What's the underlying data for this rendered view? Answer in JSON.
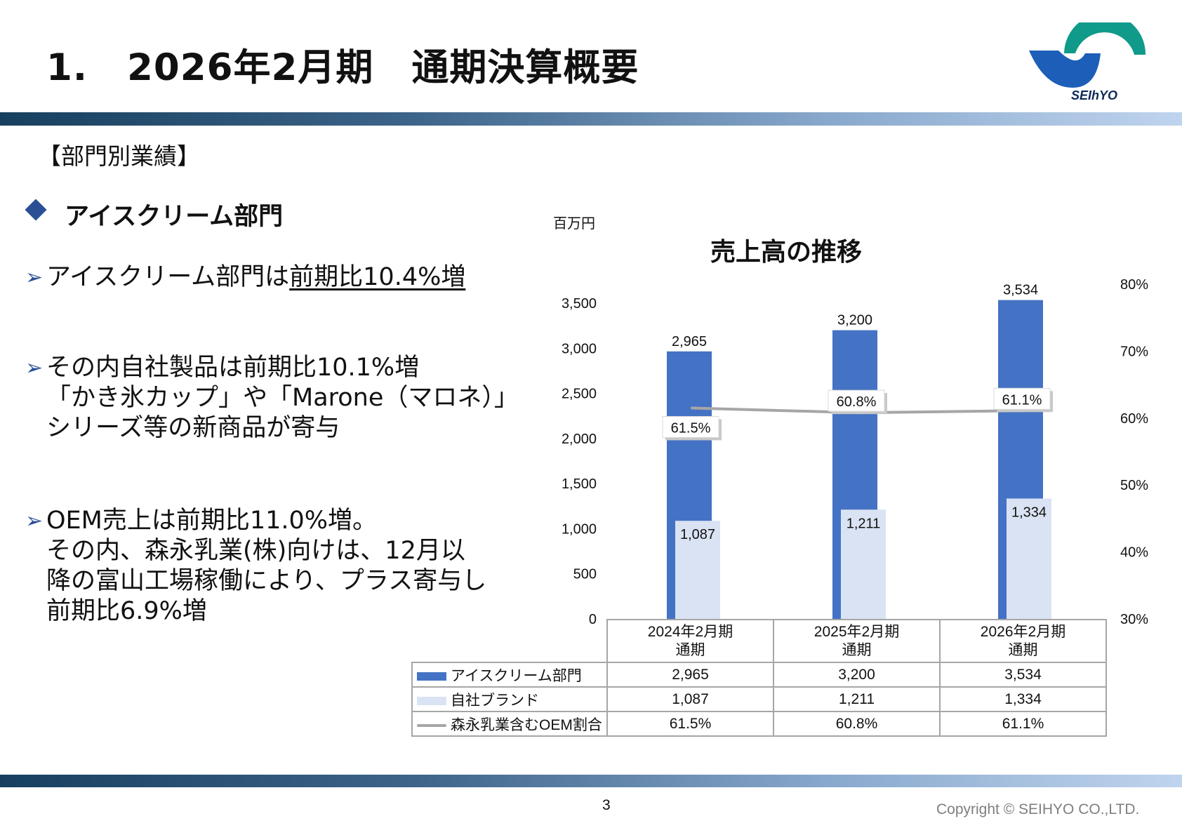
{
  "slide": {
    "number_prefix": "1.",
    "title": "2026年2月期　通期決算概要",
    "section_heading": "【部門別業績】",
    "department_heading": "アイスクリーム部門",
    "page_number": "3",
    "copyright": "Copyright © SEIHYO CO.,LTD.",
    "logo_text": "SEIhYO"
  },
  "bullets": {
    "b1": {
      "prefix": "アイスクリーム部門は",
      "emphasis": "前期比10.4%増"
    },
    "b2": {
      "line1": "その内自社製品は前期比10.1%増",
      "line2": "「かき氷カップ」や「Marone（マロネ）」",
      "line3": "シリーズ等の新商品が寄与"
    },
    "b3": {
      "line1": "OEM売上は前期比11.0%増。",
      "line2": "その内、森永乳業(株)向けは、12月以",
      "line3": "降の富山工場稼働により、プラス寄与し",
      "line4": "前期比6.9%増"
    }
  },
  "colors": {
    "bar_primary": "#4472c4",
    "bar_secondary": "#dae3f3",
    "line": "#a6a6a6",
    "accent": "#2a4f95",
    "logo_blue": "#1d5fb8",
    "logo_teal": "#109a8a"
  },
  "chart_data": {
    "type": "bar",
    "title": "売上高の推移",
    "unit_label": "百万円",
    "categories": [
      "2024年2月期 通期",
      "2025年2月期 通期",
      "2026年2月期 通期"
    ],
    "category_lines": [
      [
        "2024年2月期",
        "通期"
      ],
      [
        "2025年2月期",
        "通期"
      ],
      [
        "2026年2月期",
        "通期"
      ]
    ],
    "series": [
      {
        "name": "アイスクリーム部門",
        "values": [
          2965,
          3200,
          3534
        ],
        "labels": [
          "2,965",
          "3,200",
          "3,534"
        ],
        "axis": "left",
        "kind": "bar"
      },
      {
        "name": "自社ブランド",
        "values": [
          1087,
          1211,
          1334
        ],
        "labels": [
          "1,087",
          "1,211",
          "1,334"
        ],
        "axis": "left",
        "kind": "bar"
      },
      {
        "name": "森永乳業含むOEM割合",
        "values": [
          61.5,
          60.8,
          61.1
        ],
        "labels": [
          "61.5%",
          "60.8%",
          "61.1%"
        ],
        "axis": "right",
        "kind": "line"
      }
    ],
    "y_left": {
      "min": 0,
      "max": 3500,
      "ticks": [
        "0",
        "500",
        "1,000",
        "1,500",
        "2,000",
        "2,500",
        "3,000",
        "3,500"
      ]
    },
    "y_right": {
      "min": 30,
      "max": 80,
      "ticks": [
        "30%",
        "40%",
        "50%",
        "60%",
        "70%",
        "80%"
      ]
    },
    "grid": false,
    "legend": "data-table"
  }
}
